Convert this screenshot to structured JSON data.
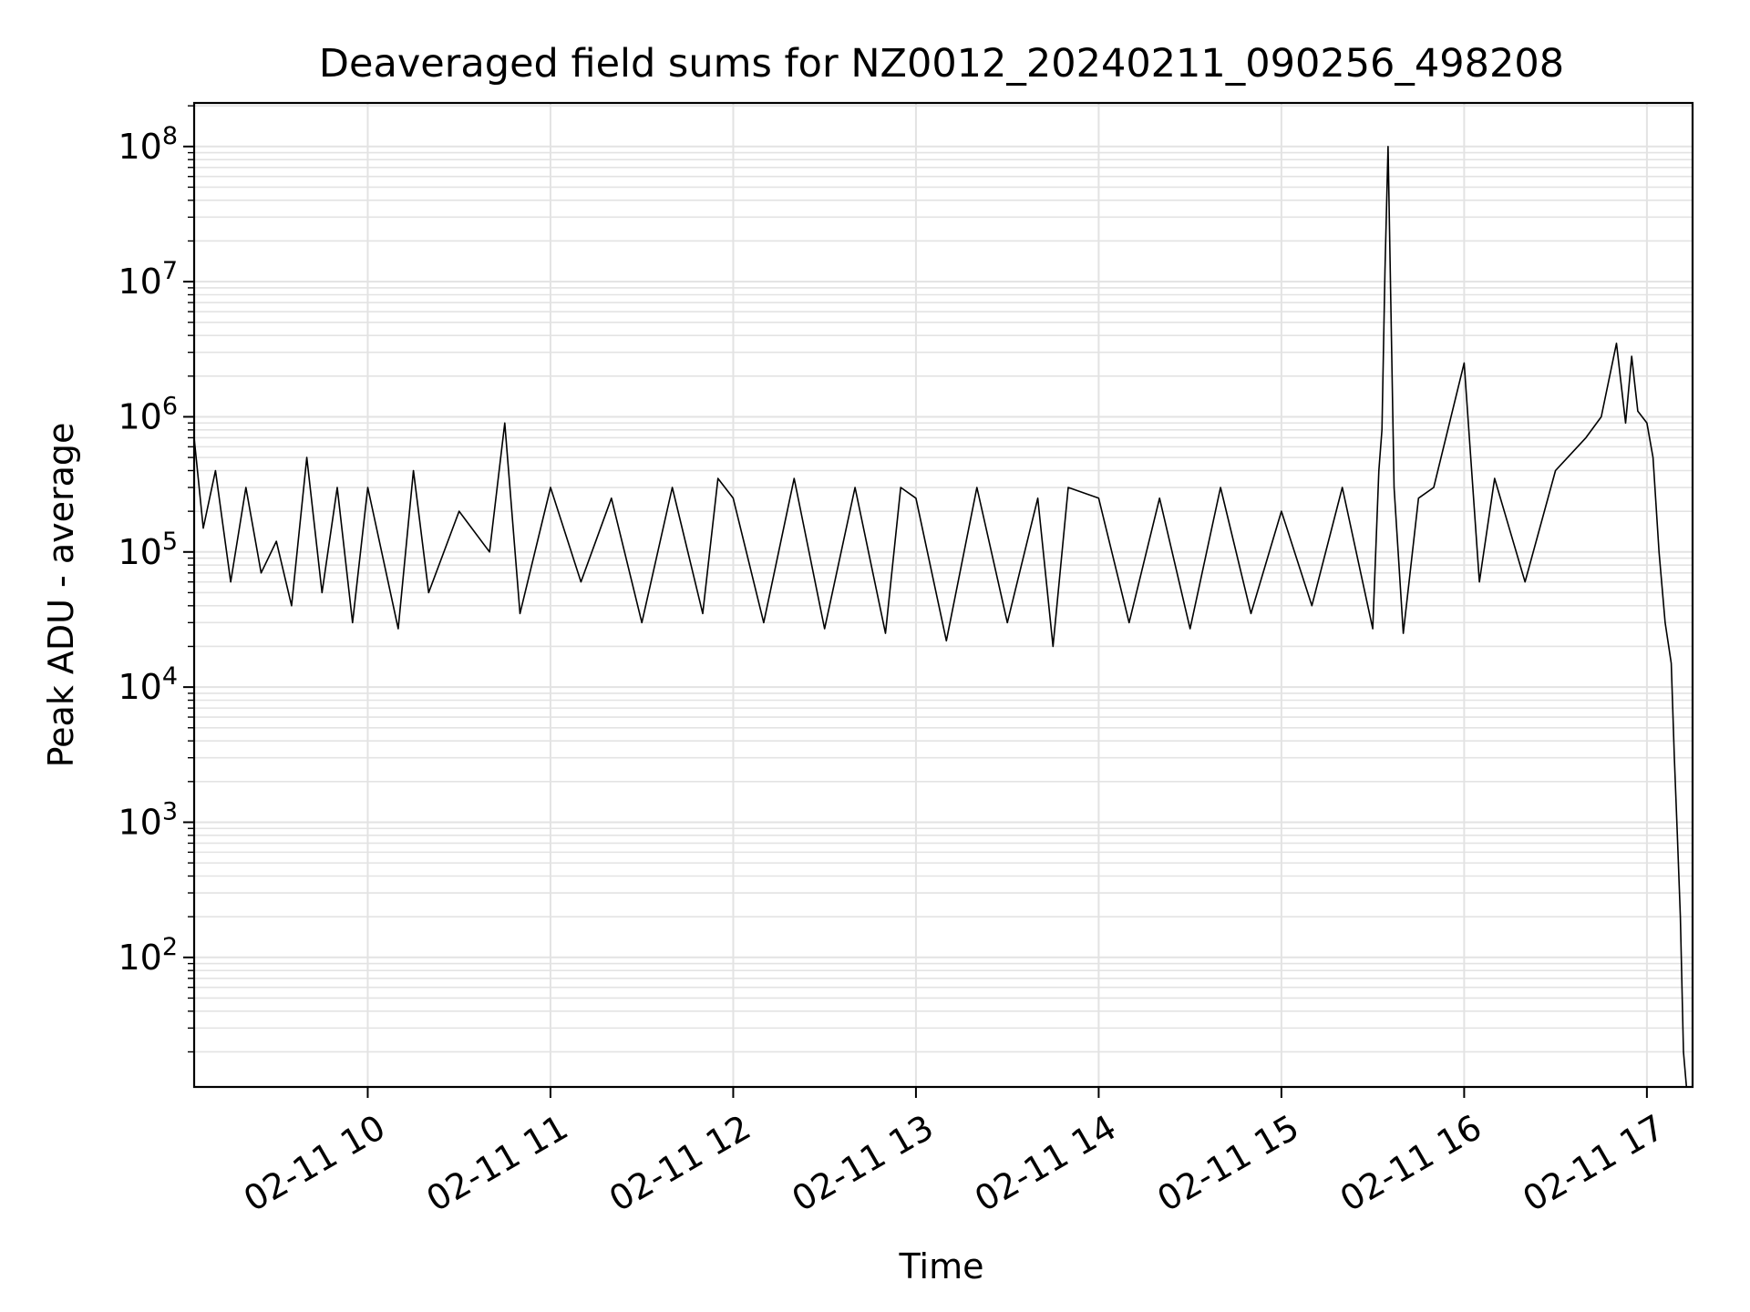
{
  "chart_data": {
    "type": "line",
    "title": "Deaveraged field sums for NZ0012_20240211_090256_498208",
    "xlabel": "Time",
    "ylabel": "Peak ADU - average",
    "yscale": "log",
    "ylim": [
      11,
      210000000
    ],
    "xlim": [
      "2024-02-11 09:03",
      "2024-02-11 17:15"
    ],
    "grid": true,
    "legend": "none",
    "line_color": "#000000",
    "grid_color": "#e3e3e3",
    "x_ticks": [
      {
        "value": "2024-02-11 10:00",
        "label": "02-11 10"
      },
      {
        "value": "2024-02-11 11:00",
        "label": "02-11 11"
      },
      {
        "value": "2024-02-11 12:00",
        "label": "02-11 12"
      },
      {
        "value": "2024-02-11 13:00",
        "label": "02-11 13"
      },
      {
        "value": "2024-02-11 14:00",
        "label": "02-11 14"
      },
      {
        "value": "2024-02-11 15:00",
        "label": "02-11 15"
      },
      {
        "value": "2024-02-11 16:00",
        "label": "02-11 16"
      },
      {
        "value": "2024-02-11 17:00",
        "label": "02-11 17"
      }
    ],
    "y_ticks": [
      {
        "value": 100,
        "base": "10",
        "exp": "2"
      },
      {
        "value": 1000,
        "base": "10",
        "exp": "3"
      },
      {
        "value": 10000,
        "base": "10",
        "exp": "4"
      },
      {
        "value": 100000,
        "base": "10",
        "exp": "5"
      },
      {
        "value": 1000000,
        "base": "10",
        "exp": "6"
      },
      {
        "value": 10000000,
        "base": "10",
        "exp": "7"
      },
      {
        "value": 100000000,
        "base": "10",
        "exp": "8"
      }
    ],
    "series": [
      {
        "x": [
          "2024-02-11 09:03",
          "2024-02-11 09:06",
          "2024-02-11 09:10",
          "2024-02-11 09:15",
          "2024-02-11 09:20",
          "2024-02-11 09:25",
          "2024-02-11 09:30",
          "2024-02-11 09:35",
          "2024-02-11 09:40",
          "2024-02-11 09:45",
          "2024-02-11 09:50",
          "2024-02-11 09:55",
          "2024-02-11 10:00",
          "2024-02-11 10:10",
          "2024-02-11 10:15",
          "2024-02-11 10:20",
          "2024-02-11 10:30",
          "2024-02-11 10:40",
          "2024-02-11 10:45",
          "2024-02-11 10:50",
          "2024-02-11 11:00",
          "2024-02-11 11:10",
          "2024-02-11 11:20",
          "2024-02-11 11:30",
          "2024-02-11 11:40",
          "2024-02-11 11:50",
          "2024-02-11 11:55",
          "2024-02-11 12:00",
          "2024-02-11 12:10",
          "2024-02-11 12:20",
          "2024-02-11 12:30",
          "2024-02-11 12:40",
          "2024-02-11 12:50",
          "2024-02-11 12:55",
          "2024-02-11 13:00",
          "2024-02-11 13:10",
          "2024-02-11 13:20",
          "2024-02-11 13:30",
          "2024-02-11 13:40",
          "2024-02-11 13:45",
          "2024-02-11 13:50",
          "2024-02-11 14:00",
          "2024-02-11 14:10",
          "2024-02-11 14:20",
          "2024-02-11 14:30",
          "2024-02-11 14:40",
          "2024-02-11 14:50",
          "2024-02-11 15:00",
          "2024-02-11 15:10",
          "2024-02-11 15:20",
          "2024-02-11 15:30",
          "2024-02-11 15:32",
          "2024-02-11 15:33",
          "2024-02-11 15:34",
          "2024-02-11 15:35",
          "2024-02-11 15:37",
          "2024-02-11 15:40",
          "2024-02-11 15:45",
          "2024-02-11 15:50",
          "2024-02-11 16:00",
          "2024-02-11 16:05",
          "2024-02-11 16:10",
          "2024-02-11 16:20",
          "2024-02-11 16:30",
          "2024-02-11 16:40",
          "2024-02-11 16:45",
          "2024-02-11 16:50",
          "2024-02-11 16:53",
          "2024-02-11 16:55",
          "2024-02-11 16:57",
          "2024-02-11 17:00",
          "2024-02-11 17:02",
          "2024-02-11 17:04",
          "2024-02-11 17:06",
          "2024-02-11 17:08",
          "2024-02-11 17:09",
          "2024-02-11 17:10",
          "2024-02-11 17:11",
          "2024-02-11 17:12",
          "2024-02-11 17:13"
        ],
        "y": [
          700000,
          150000,
          400000,
          60000,
          300000,
          70000,
          120000,
          40000,
          500000,
          50000,
          300000,
          30000,
          300000,
          27000,
          400000,
          50000,
          200000,
          100000,
          900000,
          35000,
          300000,
          60000,
          250000,
          30000,
          300000,
          35000,
          350000,
          250000,
          30000,
          350000,
          27000,
          300000,
          25000,
          300000,
          250000,
          22000,
          300000,
          30000,
          250000,
          20000,
          300000,
          250000,
          30000,
          250000,
          27000,
          300000,
          35000,
          200000,
          40000,
          300000,
          27000,
          400000,
          800000,
          12000000,
          100000000,
          300000,
          25000,
          250000,
          300000,
          2500000,
          60000,
          350000,
          60000,
          400000,
          700000,
          1000000,
          3500000,
          900000,
          2800000,
          1100000,
          900000,
          500000,
          100000,
          30000,
          15000,
          3000,
          800,
          200,
          20,
          11
        ]
      }
    ]
  }
}
